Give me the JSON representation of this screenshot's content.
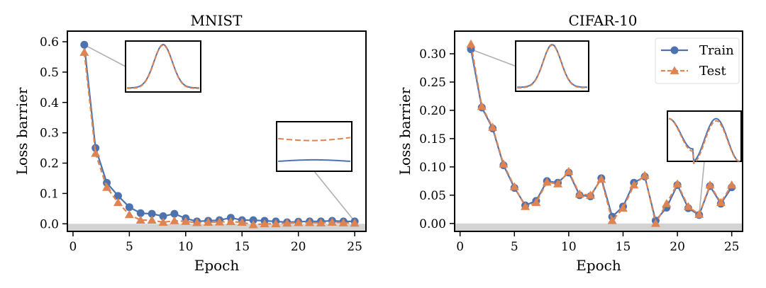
{
  "colors": {
    "train": "#4c72b0",
    "test": "#dd8452",
    "zero_band": "#d3d3d3",
    "leader": "#b0b0b0"
  },
  "chart_data": [
    {
      "type": "line",
      "title": "MNIST",
      "xlabel": "Epoch",
      "ylabel": "Loss barrier",
      "xlim": [
        -0.5,
        26
      ],
      "ylim": [
        -0.025,
        0.635
      ],
      "xticks": [
        0,
        5,
        10,
        15,
        20,
        25
      ],
      "yticks": [
        0.0,
        0.1,
        0.2,
        0.3,
        0.4,
        0.5,
        0.6
      ],
      "ytick_labels": [
        "0.0",
        "0.1",
        "0.2",
        "0.3",
        "0.4",
        "0.5",
        "0.6"
      ],
      "x": [
        1,
        2,
        3,
        4,
        5,
        6,
        7,
        8,
        9,
        10,
        11,
        12,
        13,
        14,
        15,
        16,
        17,
        18,
        19,
        20,
        21,
        22,
        23,
        24,
        25
      ],
      "series": [
        {
          "name": "Train",
          "marker": "circle",
          "linestyle": "solid",
          "values": [
            0.59,
            0.25,
            0.135,
            0.092,
            0.055,
            0.035,
            0.033,
            0.025,
            0.033,
            0.018,
            0.008,
            0.01,
            0.012,
            0.02,
            0.012,
            0.012,
            0.01,
            0.008,
            0.005,
            0.007,
            0.008,
            0.008,
            0.01,
            0.008,
            0.008
          ]
        },
        {
          "name": "Test",
          "marker": "triangle",
          "linestyle": "dashed",
          "values": [
            0.565,
            0.232,
            0.12,
            0.07,
            0.03,
            0.012,
            0.012,
            0.005,
            0.01,
            0.008,
            0.004,
            0.005,
            0.006,
            0.007,
            0.005,
            -0.003,
            0.0,
            0.0,
            0.002,
            0.004,
            0.004,
            0.003,
            0.005,
            0.003,
            0.002
          ]
        }
      ],
      "insets": [
        {
          "anchor_epoch": 1,
          "anchor_value": 0.59,
          "placement": "top-center",
          "curve": "single-peak-overlapping"
        },
        {
          "anchor_epoch": 25,
          "anchor_value": 0.008,
          "placement": "mid-right",
          "curve": "flat-separated"
        }
      ]
    },
    {
      "type": "line",
      "title": "CIFAR-10",
      "xlabel": "Epoch",
      "ylabel": "Loss barrier",
      "xlim": [
        -0.5,
        26
      ],
      "ylim": [
        -0.014,
        0.34
      ],
      "xticks": [
        0,
        5,
        10,
        15,
        20,
        25
      ],
      "yticks": [
        0.0,
        0.05,
        0.1,
        0.15,
        0.2,
        0.25,
        0.3
      ],
      "ytick_labels": [
        "0.00",
        "0.05",
        "0.10",
        "0.15",
        "0.20",
        "0.25",
        "0.30"
      ],
      "x": [
        1,
        2,
        3,
        4,
        5,
        6,
        7,
        8,
        9,
        10,
        11,
        12,
        13,
        14,
        15,
        16,
        17,
        18,
        19,
        20,
        21,
        22,
        23,
        24,
        25
      ],
      "series": [
        {
          "name": "Train",
          "marker": "circle",
          "linestyle": "solid",
          "values": [
            0.308,
            0.205,
            0.168,
            0.103,
            0.063,
            0.032,
            0.04,
            0.075,
            0.072,
            0.09,
            0.05,
            0.048,
            0.08,
            0.012,
            0.03,
            0.072,
            0.083,
            0.005,
            0.028,
            0.068,
            0.027,
            0.015,
            0.066,
            0.035,
            0.064
          ]
        },
        {
          "name": "Test",
          "marker": "triangle",
          "linestyle": "dashed",
          "values": [
            0.317,
            0.207,
            0.17,
            0.105,
            0.065,
            0.03,
            0.037,
            0.073,
            0.07,
            0.092,
            0.052,
            0.05,
            0.078,
            0.005,
            0.027,
            0.068,
            0.085,
            0.0,
            0.035,
            0.07,
            0.03,
            0.016,
            0.068,
            0.037,
            0.068
          ]
        }
      ],
      "legend": {
        "position": "top-right",
        "entries": [
          "Train",
          "Test"
        ]
      },
      "insets": [
        {
          "anchor_epoch": 1,
          "anchor_value": 0.308,
          "placement": "top-center",
          "curve": "single-peak-overlapping"
        },
        {
          "anchor_epoch": 22,
          "anchor_value": 0.015,
          "placement": "mid-right",
          "curve": "double-well"
        }
      ]
    }
  ]
}
